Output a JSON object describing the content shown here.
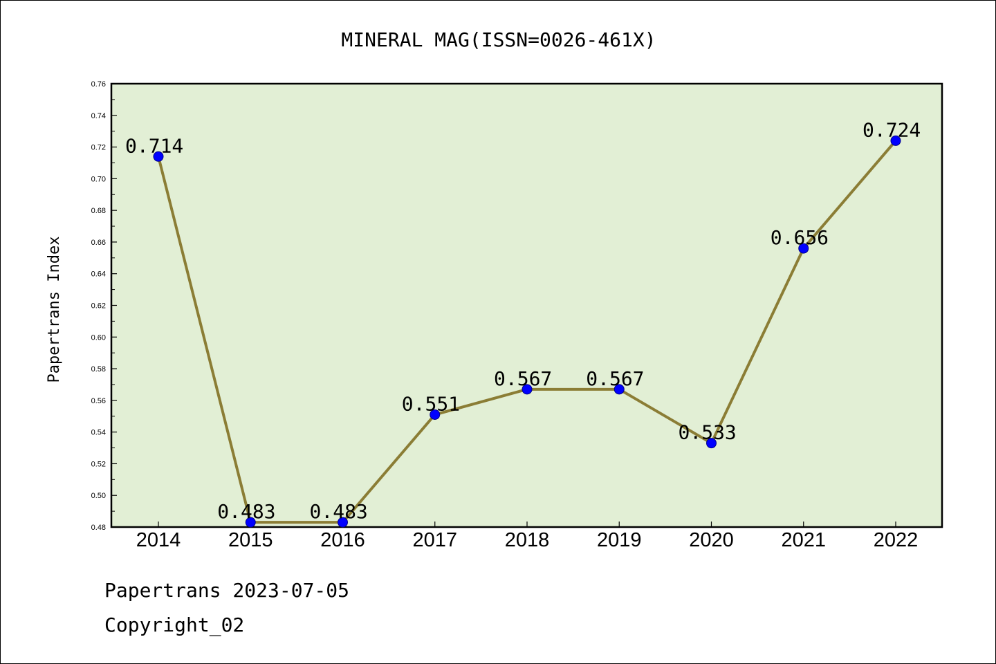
{
  "chart_data": {
    "type": "line",
    "title": "MINERAL MAG(ISSN=0026-461X)",
    "xlabel": "",
    "ylabel": "Papertrans Index",
    "categories": [
      "2014",
      "2015",
      "2016",
      "2017",
      "2018",
      "2019",
      "2020",
      "2021",
      "2022"
    ],
    "series": [
      {
        "values": [
          0.714,
          0.483,
          0.483,
          0.551,
          0.567,
          0.567,
          0.533,
          0.656,
          0.724
        ],
        "data_labels": [
          "0.714",
          "0.483",
          "0.483",
          "0.551",
          "0.567",
          "0.567",
          "0.533",
          "0.656",
          "0.724"
        ]
      }
    ],
    "ylim": [
      0.48,
      0.76
    ],
    "yticks": [
      "0.48",
      "0.50",
      "0.52",
      "0.54",
      "0.56",
      "0.58",
      "0.60",
      "0.62",
      "0.64",
      "0.66",
      "0.68",
      "0.70",
      "0.72",
      "0.74",
      "0.76"
    ],
    "grid": false,
    "legend": "none",
    "colors": {
      "plot_background": "#e2efd5",
      "line": "#8b7d35",
      "marker": "#0000ff",
      "marker_edge": "#00008b",
      "axis": "#000000"
    }
  },
  "footer": {
    "date_line": "Papertrans 2023-07-05",
    "copyright_line": "Copyright_02"
  }
}
